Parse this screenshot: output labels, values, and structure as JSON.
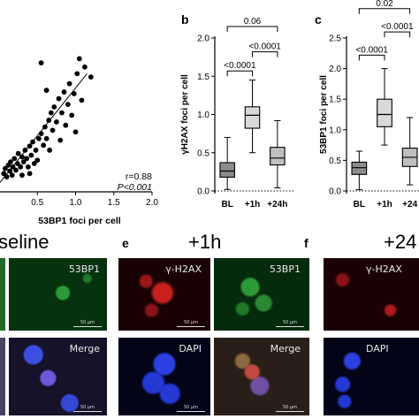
{
  "panel_letters": {
    "b": "b",
    "c": "c",
    "e": "e",
    "f": "f"
  },
  "conditions": {
    "baseline": "seline",
    "h1": "+1h",
    "h24": "+24"
  },
  "tile_labels": {
    "p53bp1": "53BP1",
    "gh2ax": "γ-H2AX",
    "merge": "Merge",
    "dapi": "DAPI"
  },
  "scale_text": "50 µm",
  "tile_colors": {
    "green": "#1f7a2a",
    "red": "#c4181f",
    "blue": "#2a3fd0",
    "merge": "#6a5a55"
  },
  "chart_data": [
    {
      "type": "scatter",
      "xlabel": "53BP1 foci per cell",
      "ylabel": "",
      "xlim": [
        0,
        2.0
      ],
      "ylim": [
        0,
        1.7
      ],
      "xticks": [
        "0.5",
        "1.0",
        "1.5",
        "2.0"
      ],
      "stats": {
        "r": "r=0.88",
        "p": "P<0.001"
      },
      "fit": {
        "x0": 0,
        "y0": 0.1,
        "x1": 1.15,
        "y1": 1.42
      },
      "points": [
        [
          0.06,
          0.22
        ],
        [
          0.08,
          0.28
        ],
        [
          0.1,
          0.18
        ],
        [
          0.12,
          0.32
        ],
        [
          0.14,
          0.25
        ],
        [
          0.15,
          0.36
        ],
        [
          0.17,
          0.2
        ],
        [
          0.18,
          0.3
        ],
        [
          0.2,
          0.4
        ],
        [
          0.22,
          0.26
        ],
        [
          0.24,
          0.34
        ],
        [
          0.25,
          0.46
        ],
        [
          0.28,
          0.3
        ],
        [
          0.3,
          0.42
        ],
        [
          0.32,
          0.36
        ],
        [
          0.34,
          0.5
        ],
        [
          0.36,
          0.4
        ],
        [
          0.38,
          0.3
        ],
        [
          0.4,
          0.55
        ],
        [
          0.42,
          0.44
        ],
        [
          0.44,
          0.6
        ],
        [
          0.46,
          0.34
        ],
        [
          0.48,
          0.5
        ],
        [
          0.5,
          0.38
        ],
        [
          0.52,
          0.64
        ],
        [
          0.55,
          0.7
        ],
        [
          0.58,
          0.56
        ],
        [
          0.6,
          0.78
        ],
        [
          0.62,
          0.64
        ],
        [
          0.65,
          0.86
        ],
        [
          0.66,
          0.5
        ],
        [
          0.68,
          0.95
        ],
        [
          0.7,
          0.74
        ],
        [
          0.72,
          1.02
        ],
        [
          0.75,
          0.84
        ],
        [
          0.78,
          1.12
        ],
        [
          0.8,
          0.62
        ],
        [
          0.82,
          0.95
        ],
        [
          0.85,
          1.2
        ],
        [
          0.87,
          0.8
        ],
        [
          0.9,
          1.05
        ],
        [
          0.92,
          1.3
        ],
        [
          0.95,
          0.92
        ],
        [
          0.98,
          1.18
        ],
        [
          1.02,
          1.42
        ],
        [
          1.05,
          1.6
        ],
        [
          1.08,
          1.1
        ],
        [
          1.12,
          1.5
        ],
        [
          1.2,
          1.38
        ],
        [
          0.55,
          1.55
        ],
        [
          0.62,
          1.22
        ],
        [
          0.4,
          0.22
        ],
        [
          0.3,
          0.2
        ],
        [
          1.0,
          0.72
        ]
      ]
    },
    {
      "type": "box",
      "ylabel": "γH2AX foci per cell",
      "categories": [
        "BL",
        "+1h",
        "+24h"
      ],
      "ylim": [
        0,
        2.0
      ],
      "yticks": [
        "0.0",
        "0.5",
        "1.0",
        "1.5",
        "2.0"
      ],
      "boxes": [
        {
          "min": 0.02,
          "q1": 0.18,
          "median": 0.26,
          "q3": 0.37,
          "max": 0.7,
          "fill": "#8c8c8c"
        },
        {
          "min": 0.5,
          "q1": 0.82,
          "median": 0.99,
          "q3": 1.1,
          "max": 1.45,
          "fill": "#d9d9d9"
        },
        {
          "min": 0.04,
          "q1": 0.34,
          "median": 0.43,
          "q3": 0.57,
          "max": 0.92,
          "fill": "#bfbfbf"
        }
      ],
      "comparisons": [
        {
          "from": 0,
          "to": 1,
          "y": 1.57,
          "label": "<0.0001"
        },
        {
          "from": 1,
          "to": 2,
          "y": 1.82,
          "label": "<0.0001"
        },
        {
          "from": 0,
          "to": 2,
          "y": 2.15,
          "label": "0.06"
        }
      ]
    },
    {
      "type": "box",
      "ylabel": "53BP1 foci per cell",
      "categories": [
        "BL",
        "+1h",
        "+24"
      ],
      "ylim": [
        0,
        2.5
      ],
      "yticks": [
        "0.0",
        "0.5",
        "1.0",
        "1.5",
        "2.0",
        "2.5"
      ],
      "boxes": [
        {
          "min": 0.02,
          "q1": 0.27,
          "median": 0.38,
          "q3": 0.47,
          "max": 0.65,
          "fill": "#8c8c8c"
        },
        {
          "min": 0.75,
          "q1": 1.05,
          "median": 1.25,
          "q3": 1.5,
          "max": 2.0,
          "fill": "#d9d9d9"
        },
        {
          "min": 0.1,
          "q1": 0.4,
          "median": 0.55,
          "q3": 0.7,
          "max": 1.2,
          "fill": "#bfbfbf"
        }
      ],
      "comparisons": [
        {
          "from": 0,
          "to": 1,
          "y": 2.22,
          "label": "<0.0001"
        },
        {
          "from": 1,
          "to": 2,
          "y": 2.6,
          "label": "<0.0001"
        },
        {
          "from": 0,
          "to": 2,
          "y": 2.98,
          "label": "0.02"
        }
      ]
    }
  ]
}
